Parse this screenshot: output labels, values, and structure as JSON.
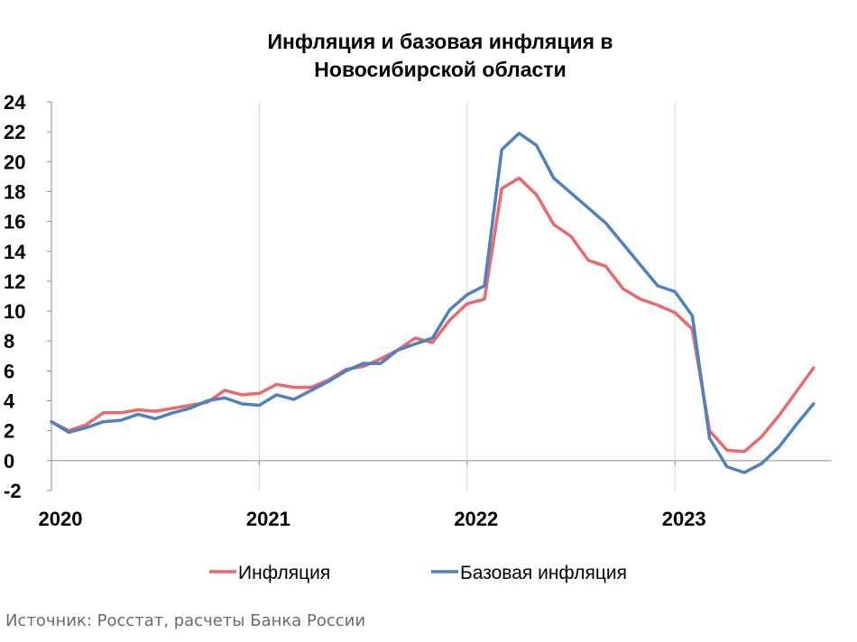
{
  "title_lines": [
    "Инфляция и базовая инфляция в",
    "Новосибирской области"
  ],
  "source": "Источник: Росстат, расчеты Банка России",
  "chart_data": {
    "type": "line",
    "title": "Инфляция и базовая инфляция в Новосибирской области",
    "ylim": [
      -2,
      24
    ],
    "yticks": [
      -2,
      0,
      2,
      4,
      6,
      8,
      10,
      12,
      14,
      16,
      18,
      20,
      22,
      24
    ],
    "ytick_labels": [
      "-2",
      "0",
      "2",
      "4",
      "6",
      "8",
      "10",
      "12",
      "14",
      "16",
      "18",
      "20",
      "22",
      "24"
    ],
    "x_label_ticks": [
      {
        "x": "2020-01",
        "label": "2020"
      },
      {
        "x": "2021-01",
        "label": "2021"
      },
      {
        "x": "2022-01",
        "label": "2022"
      },
      {
        "x": "2023-01",
        "label": "2023"
      }
    ],
    "x": [
      "2020-01",
      "2020-02",
      "2020-03",
      "2020-04",
      "2020-05",
      "2020-06",
      "2020-07",
      "2020-08",
      "2020-09",
      "2020-10",
      "2020-11",
      "2020-12",
      "2021-01",
      "2021-02",
      "2021-03",
      "2021-04",
      "2021-05",
      "2021-06",
      "2021-07",
      "2021-08",
      "2021-09",
      "2021-10",
      "2021-11",
      "2021-12",
      "2022-01",
      "2022-02",
      "2022-03",
      "2022-04",
      "2022-05",
      "2022-06",
      "2022-07",
      "2022-08",
      "2022-09",
      "2022-10",
      "2022-11",
      "2022-12",
      "2023-01",
      "2023-02",
      "2023-03",
      "2023-04",
      "2023-05",
      "2023-06",
      "2023-07",
      "2023-08",
      "2023-09"
    ],
    "series": [
      {
        "name": "Инфляция",
        "color": "#e8696e",
        "values": [
          2.6,
          2.0,
          2.4,
          3.2,
          3.2,
          3.4,
          3.3,
          3.5,
          3.7,
          3.9,
          4.7,
          4.4,
          4.5,
          5.1,
          4.9,
          4.9,
          5.4,
          6.1,
          6.3,
          6.8,
          7.4,
          8.2,
          7.9,
          9.4,
          10.5,
          10.8,
          18.2,
          18.9,
          17.8,
          15.8,
          15.0,
          13.4,
          13.0,
          11.5,
          10.8,
          10.4,
          9.9,
          8.8,
          2.0,
          0.7,
          0.6,
          1.6,
          3.0,
          4.6,
          6.2
        ]
      },
      {
        "name": "Базовая инфляция",
        "color": "#4f81bd",
        "values": [
          2.6,
          1.9,
          2.2,
          2.6,
          2.7,
          3.1,
          2.8,
          3.2,
          3.5,
          4.0,
          4.2,
          3.8,
          3.7,
          4.4,
          4.1,
          4.7,
          5.3,
          6.0,
          6.5,
          6.5,
          7.4,
          7.8,
          8.2,
          10.1,
          11.1,
          11.7,
          20.8,
          21.9,
          21.1,
          18.9,
          17.9,
          16.9,
          15.9,
          14.5,
          13.1,
          11.7,
          11.3,
          9.7,
          1.5,
          -0.4,
          -0.8,
          -0.2,
          0.9,
          2.4,
          3.8
        ]
      }
    ],
    "grid": "vertical at year boundaries",
    "legend": "bottom"
  }
}
